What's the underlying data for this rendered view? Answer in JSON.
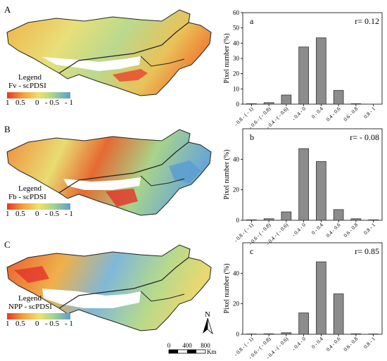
{
  "maps": [
    {
      "letter": "A",
      "legend_title": "Legend",
      "legend_subtitle": "Fv - scPDSI",
      "legend_ticks": [
        "1",
        "0.5",
        "0",
        "- 0.5",
        "- 1"
      ]
    },
    {
      "letter": "B",
      "legend_title": "Legend",
      "legend_subtitle": "Fb - scPDSI",
      "legend_ticks": [
        "1",
        "0.5",
        "0",
        "- 0.5",
        "- 1"
      ]
    },
    {
      "letter": "C",
      "legend_title": "Legend",
      "legend_subtitle": "NPP - scPDSI",
      "legend_ticks": [
        "1",
        "0.5",
        "0",
        "- 0.5",
        "- 1"
      ]
    }
  ],
  "north_label": "N",
  "scale": {
    "ticks": [
      "0",
      "400",
      "800"
    ],
    "unit": "Km"
  },
  "chart_data": [
    {
      "type": "bar",
      "panel": "a",
      "annotation": "r= 0.12",
      "categories": [
        "- 0.8 - ( - 1)",
        "- 0.6 - ( - 0.8)",
        "- 0.4 - ( - 0.6)",
        "- 0.4 - 0",
        "0 - 0.4",
        "0.4 - 0.6",
        "0.6 - 0.8",
        "0.8 - 1"
      ],
      "values": [
        0.3,
        1,
        6,
        37.5,
        43.5,
        9,
        0.3,
        0
      ],
      "ylabel": "Pixel number (%)",
      "ylim": [
        0,
        60
      ],
      "yticks": [
        0,
        10,
        20,
        30,
        40,
        50,
        60
      ]
    },
    {
      "type": "bar",
      "panel": "b",
      "annotation": "r= - 0.08",
      "categories": [
        "- 0.8 - ( - 1)",
        "- 0.6 - ( - 0.8)",
        "- 0.4 - ( - 0.6)",
        "- 0.4 - 0",
        "0 - 0.4",
        "0.4 - 0.6",
        "0.6 - 0.8",
        "0.8 - 1"
      ],
      "values": [
        0.3,
        1,
        5.5,
        47,
        38.5,
        7,
        1,
        0.3
      ],
      "ylabel": "Pixel number (%)",
      "ylim": [
        0,
        60
      ],
      "yticks": [
        0,
        20,
        40
      ]
    },
    {
      "type": "bar",
      "panel": "c",
      "annotation": "r= 0.85",
      "categories": [
        "- 0.8 - ( - 1)",
        "- 0.6 - ( - 0.8)",
        "- 0.4 - ( - 0.6)",
        "- 0.4 - 0",
        "0 - 0.4",
        "0.4 - 0.6",
        "0.6 - 0.8",
        "0.8 - 1"
      ],
      "values": [
        0.2,
        0.3,
        1,
        14,
        47.5,
        26.5,
        0.3,
        0.2
      ],
      "ylabel": "Pixel number (%)",
      "ylim": [
        0,
        60
      ],
      "yticks": [
        0,
        20,
        40
      ]
    }
  ]
}
